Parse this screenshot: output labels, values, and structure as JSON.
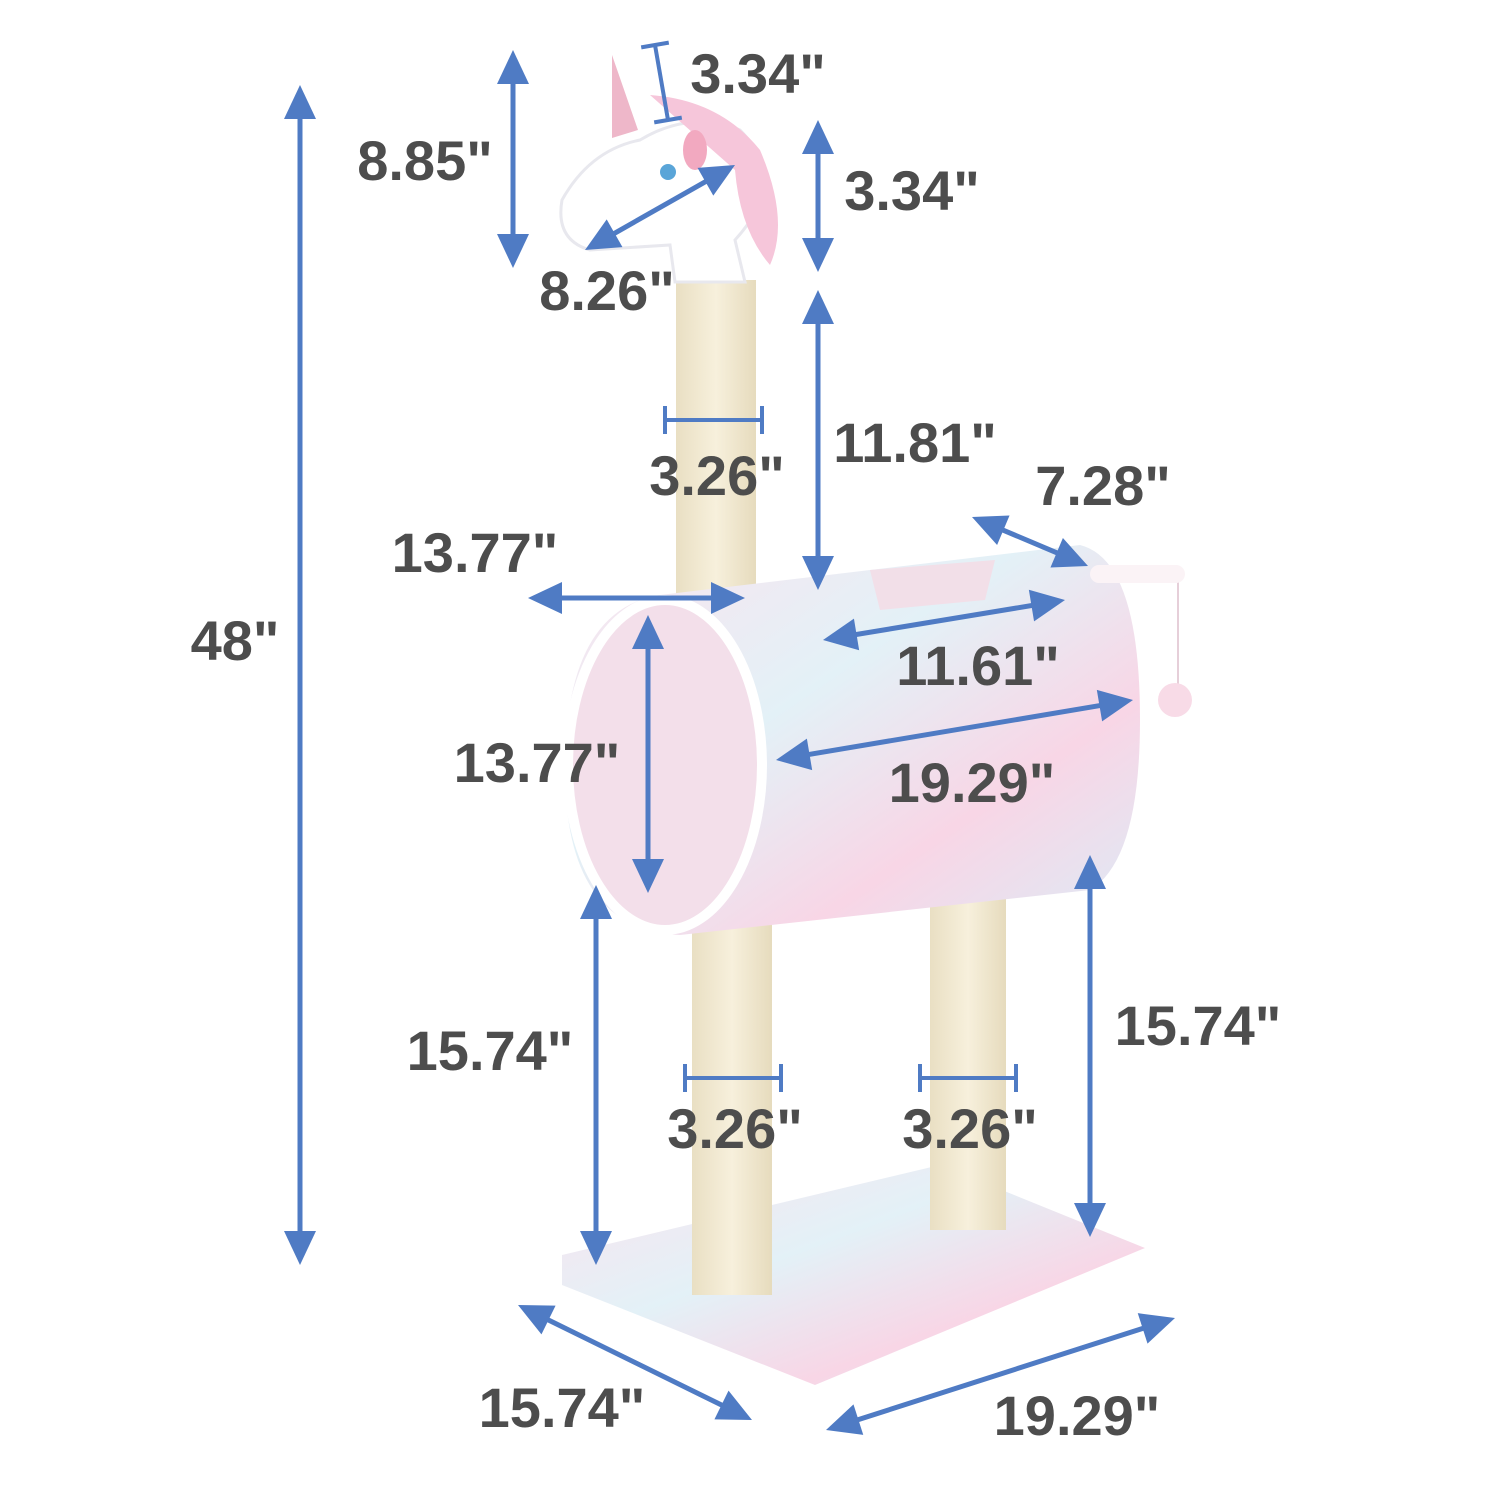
{
  "colors": {
    "arrow": "#4f7bc4",
    "text": "#4d4d4d",
    "sisal": "#f3ead2",
    "plush_pink": "#f6d3e2",
    "plush_blue": "#d6ecf3"
  },
  "dimensions": [
    {
      "id": "total-height",
      "label": "48\""
    },
    {
      "id": "head-height",
      "label": "8.85\""
    },
    {
      "id": "horn-width",
      "label": "3.34\""
    },
    {
      "id": "head-neck-height",
      "label": "3.34\""
    },
    {
      "id": "head-length",
      "label": "8.26\""
    },
    {
      "id": "neck-post-height",
      "label": "11.81\""
    },
    {
      "id": "neck-post-diameter",
      "label": "3.26\""
    },
    {
      "id": "tube-opening-width",
      "label": "7.28\""
    },
    {
      "id": "tube-width",
      "label": "13.77\""
    },
    {
      "id": "tube-top-opening-length",
      "label": "11.61\""
    },
    {
      "id": "tube-height",
      "label": "13.77\""
    },
    {
      "id": "tube-length",
      "label": "19.29\""
    },
    {
      "id": "left-post-height",
      "label": "15.74\""
    },
    {
      "id": "right-post-height",
      "label": "15.74\""
    },
    {
      "id": "left-post-diameter",
      "label": "3.26\""
    },
    {
      "id": "right-post-diameter",
      "label": "3.26\""
    },
    {
      "id": "base-depth",
      "label": "15.74\""
    },
    {
      "id": "base-width",
      "label": "19.29\""
    }
  ]
}
